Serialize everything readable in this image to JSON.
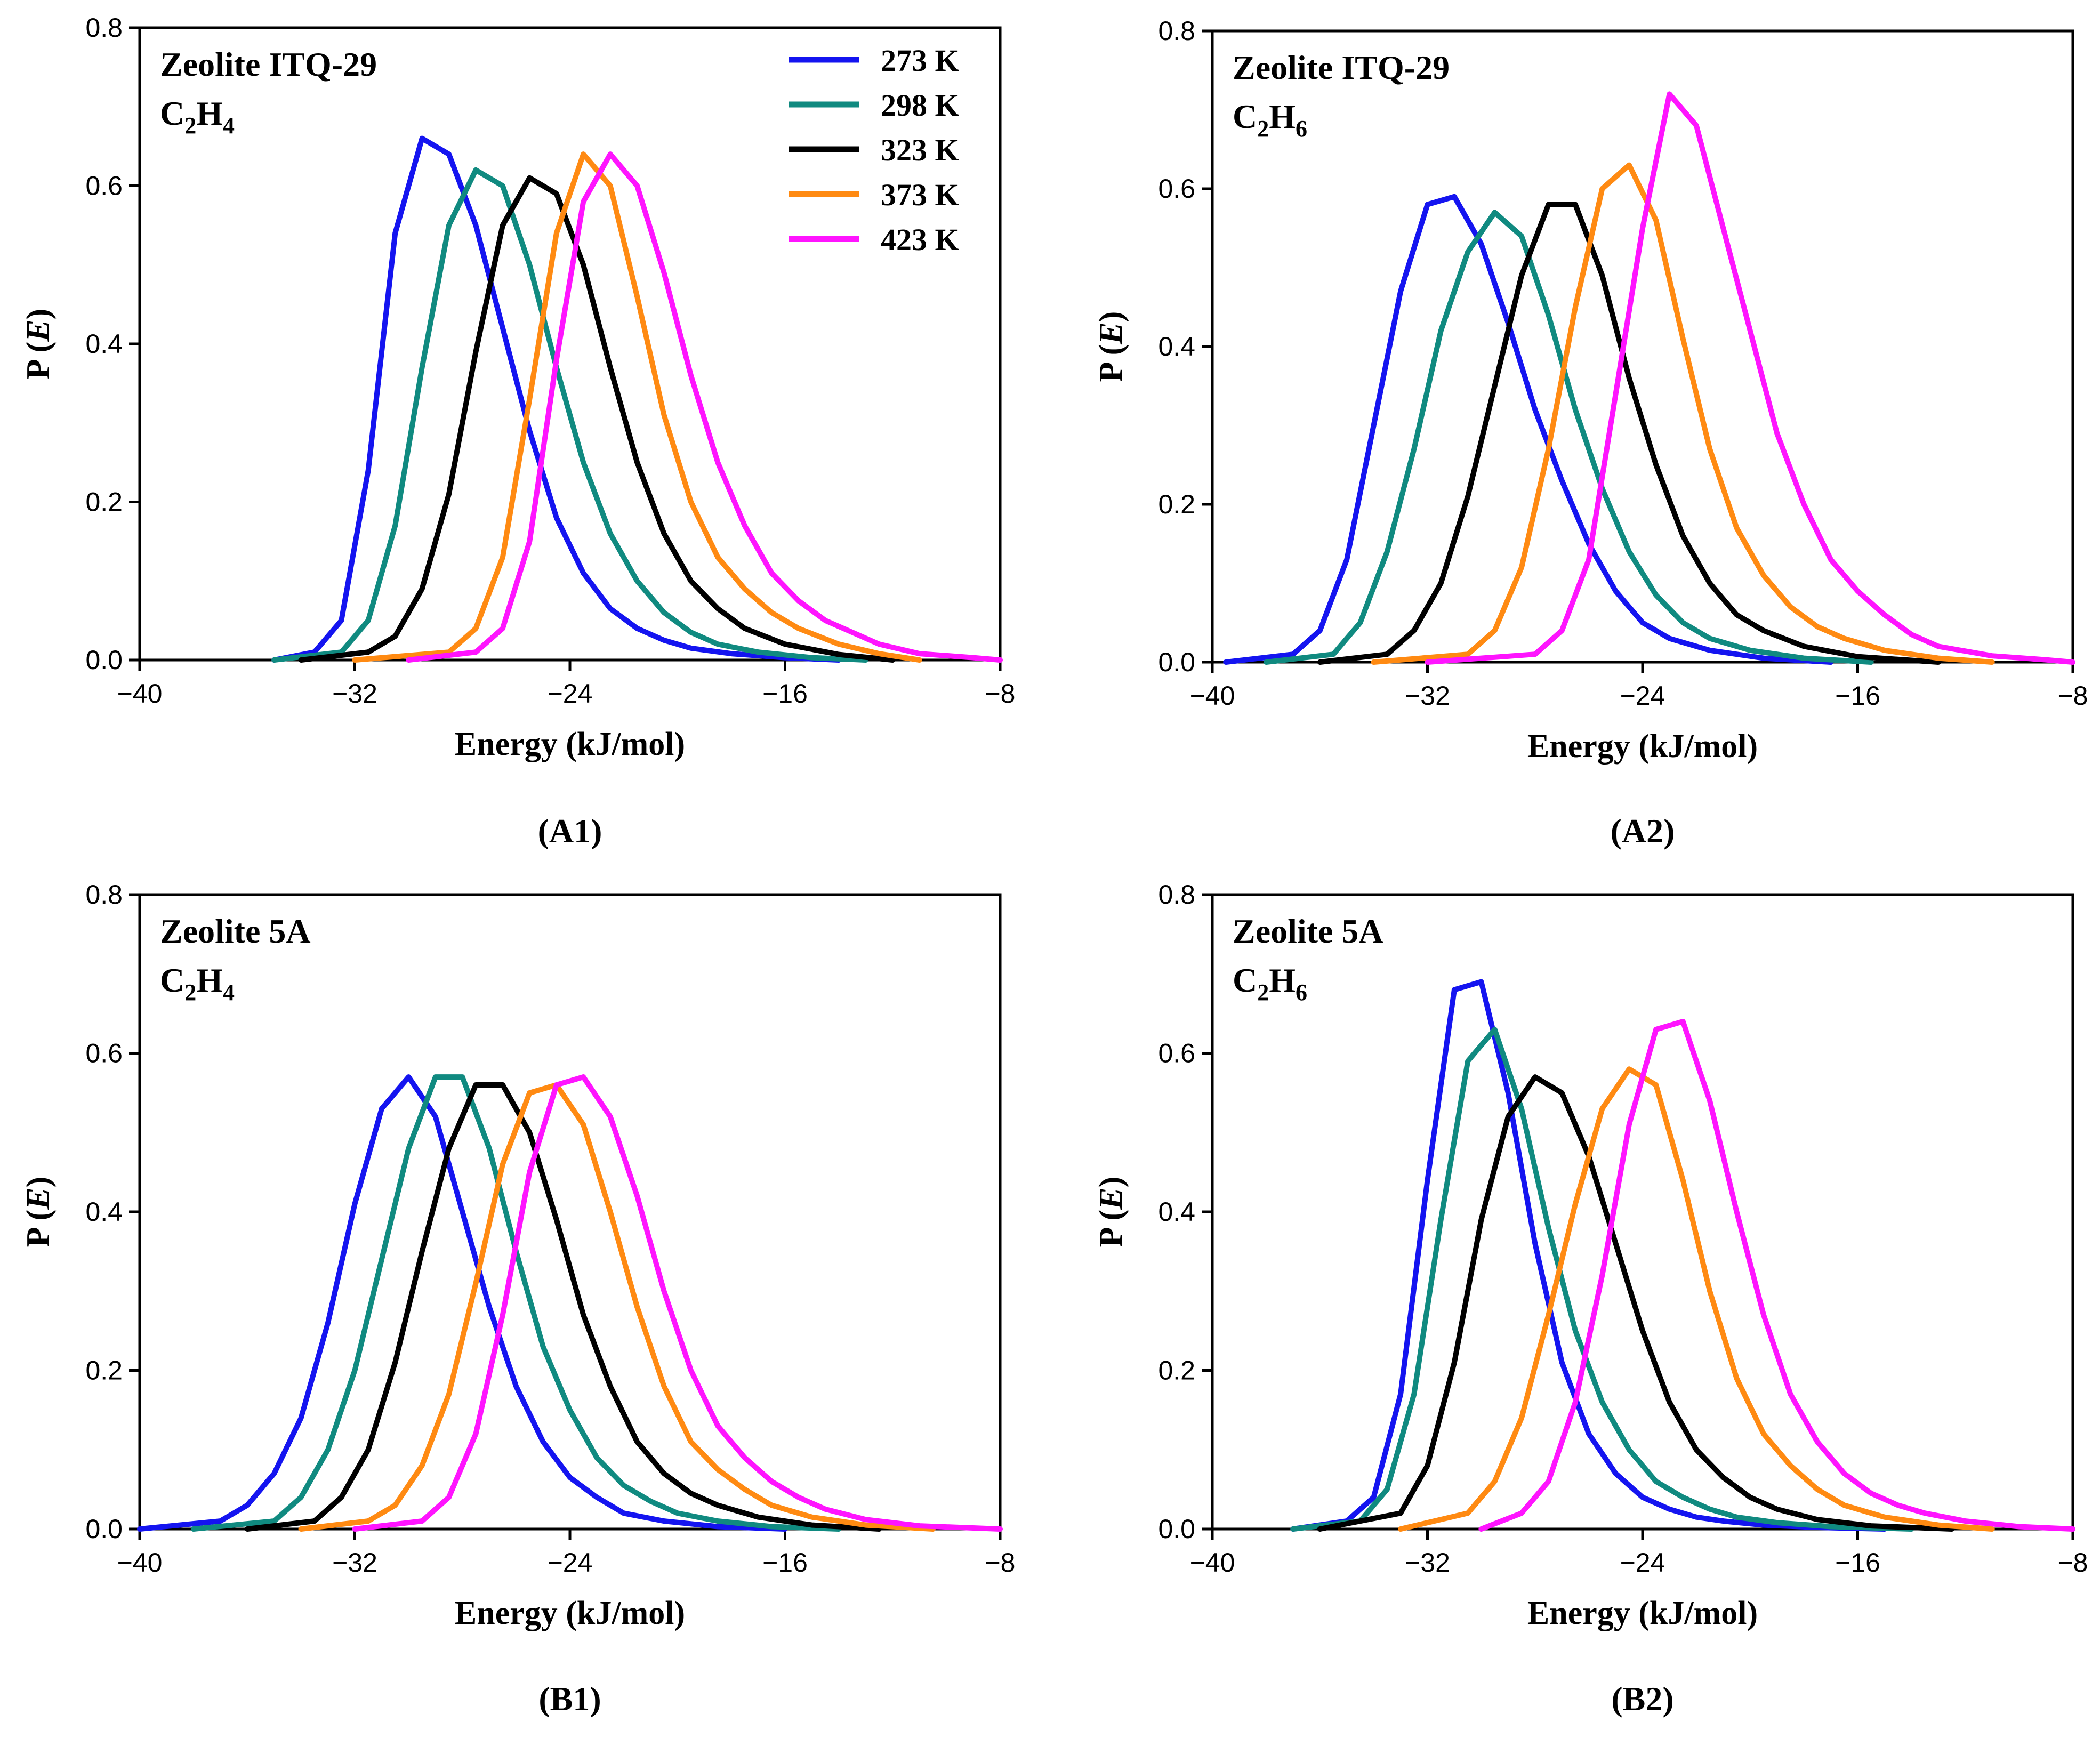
{
  "figure": {
    "legend": [
      {
        "label": "273 K",
        "color": "#1414F0"
      },
      {
        "label": "298 K",
        "color": "#108A80"
      },
      {
        "label": "323 K",
        "color": "#000000"
      },
      {
        "label": "373 K",
        "color": "#FF8A12"
      },
      {
        "label": "423 K",
        "color": "#FF14FF"
      }
    ]
  },
  "chart_data": [
    {
      "type": "line",
      "panel_label": "(A1)",
      "annotation": {
        "line1": "Zeolite ITQ-29",
        "formula": [
          "C",
          "2",
          "H",
          "4"
        ]
      },
      "xlabel": "Energy (kJ/mol)",
      "ylabel": "P (E)",
      "xlim": [
        -40,
        -8
      ],
      "ylim": [
        0,
        0.8
      ],
      "xticks": [
        "−40",
        "−32",
        "−24",
        "−16",
        "−8"
      ],
      "yticks": [
        "0.0",
        "0.2",
        "0.4",
        "0.6",
        "0.8"
      ],
      "series": [
        {
          "name": "273 K",
          "color": "#1414F0",
          "x": [
            -35,
            -33.5,
            -32.5,
            -31.5,
            -30.5,
            -29.5,
            -28.5,
            -27.5,
            -26.5,
            -25.5,
            -24.5,
            -23.5,
            -22.5,
            -21.5,
            -20.5,
            -19.5,
            -18,
            -16,
            -14
          ],
          "y": [
            0,
            0.01,
            0.05,
            0.24,
            0.54,
            0.66,
            0.64,
            0.55,
            0.42,
            0.29,
            0.18,
            0.11,
            0.065,
            0.04,
            0.025,
            0.015,
            0.008,
            0.003,
            0
          ]
        },
        {
          "name": "298 K",
          "color": "#108A80",
          "x": [
            -35,
            -32.5,
            -31.5,
            -30.5,
            -29.5,
            -28.5,
            -27.5,
            -26.5,
            -25.5,
            -24.5,
            -23.5,
            -22.5,
            -21.5,
            -20.5,
            -19.5,
            -18.5,
            -17,
            -15,
            -13
          ],
          "y": [
            0,
            0.01,
            0.05,
            0.17,
            0.37,
            0.55,
            0.62,
            0.6,
            0.5,
            0.37,
            0.25,
            0.16,
            0.1,
            0.06,
            0.035,
            0.02,
            0.01,
            0.003,
            0
          ]
        },
        {
          "name": "323 K",
          "color": "#000000",
          "x": [
            -34,
            -31.5,
            -30.5,
            -29.5,
            -28.5,
            -27.5,
            -26.5,
            -25.5,
            -24.5,
            -23.5,
            -22.5,
            -21.5,
            -20.5,
            -19.5,
            -18.5,
            -17.5,
            -16,
            -14,
            -12
          ],
          "y": [
            0,
            0.01,
            0.03,
            0.09,
            0.21,
            0.39,
            0.55,
            0.61,
            0.59,
            0.5,
            0.37,
            0.25,
            0.16,
            0.1,
            0.065,
            0.04,
            0.02,
            0.007,
            0
          ]
        },
        {
          "name": "373 K",
          "color": "#FF8A12",
          "x": [
            -32,
            -28.5,
            -27.5,
            -26.5,
            -25.5,
            -24.5,
            -23.5,
            -22.5,
            -21.5,
            -20.5,
            -19.5,
            -18.5,
            -17.5,
            -16.5,
            -15.5,
            -14,
            -12.5,
            -11
          ],
          "y": [
            0,
            0.01,
            0.04,
            0.13,
            0.33,
            0.54,
            0.64,
            0.6,
            0.46,
            0.31,
            0.2,
            0.13,
            0.09,
            0.06,
            0.04,
            0.02,
            0.008,
            0
          ]
        },
        {
          "name": "423 K",
          "color": "#FF14FF",
          "x": [
            -30,
            -27.5,
            -26.5,
            -25.5,
            -24.5,
            -23.5,
            -22.5,
            -21.5,
            -20.5,
            -19.5,
            -18.5,
            -17.5,
            -16.5,
            -15.5,
            -14.5,
            -13.5,
            -12.5,
            -11,
            -9,
            -8
          ],
          "y": [
            0,
            0.01,
            0.04,
            0.15,
            0.38,
            0.58,
            0.64,
            0.6,
            0.49,
            0.36,
            0.25,
            0.17,
            0.11,
            0.075,
            0.05,
            0.035,
            0.02,
            0.008,
            0.003,
            0
          ]
        }
      ]
    },
    {
      "type": "line",
      "panel_label": "(A2)",
      "annotation": {
        "line1": "Zeolite ITQ-29",
        "formula": [
          "C",
          "2",
          "H",
          "6"
        ]
      },
      "xlabel": "Energy (kJ/mol)",
      "ylabel": "P (E)",
      "xlim": [
        -40,
        -8
      ],
      "ylim": [
        0,
        0.8
      ],
      "xticks": [
        "−40",
        "−32",
        "−24",
        "−16",
        "−8"
      ],
      "yticks": [
        "0.0",
        "0.2",
        "0.4",
        "0.6",
        "0.8"
      ],
      "series": [
        {
          "name": "273 K",
          "color": "#1414F0",
          "x": [
            -39.5,
            -37,
            -36,
            -35,
            -34,
            -33,
            -32,
            -31,
            -30,
            -29,
            -28,
            -27,
            -26,
            -25,
            -24,
            -23,
            -21.5,
            -19.5,
            -17
          ],
          "y": [
            0,
            0.01,
            0.04,
            0.13,
            0.3,
            0.47,
            0.58,
            0.59,
            0.53,
            0.43,
            0.32,
            0.23,
            0.15,
            0.09,
            0.05,
            0.03,
            0.015,
            0.005,
            0
          ]
        },
        {
          "name": "298 K",
          "color": "#108A80",
          "x": [
            -38,
            -35.5,
            -34.5,
            -33.5,
            -32.5,
            -31.5,
            -30.5,
            -29.5,
            -28.5,
            -27.5,
            -26.5,
            -25.5,
            -24.5,
            -23.5,
            -22.5,
            -21.5,
            -20,
            -18,
            -15.5
          ],
          "y": [
            0,
            0.01,
            0.05,
            0.14,
            0.27,
            0.42,
            0.52,
            0.57,
            0.54,
            0.44,
            0.32,
            0.22,
            0.14,
            0.085,
            0.05,
            0.03,
            0.015,
            0.005,
            0
          ]
        },
        {
          "name": "323 K",
          "color": "#000000",
          "x": [
            -36,
            -33.5,
            -32.5,
            -31.5,
            -30.5,
            -29.5,
            -28.5,
            -27.5,
            -26.5,
            -25.5,
            -24.5,
            -23.5,
            -22.5,
            -21.5,
            -20.5,
            -19.5,
            -18,
            -16,
            -13
          ],
          "y": [
            0,
            0.01,
            0.04,
            0.1,
            0.21,
            0.35,
            0.49,
            0.58,
            0.58,
            0.49,
            0.36,
            0.25,
            0.16,
            0.1,
            0.06,
            0.04,
            0.02,
            0.007,
            0
          ]
        },
        {
          "name": "373 K",
          "color": "#FF8A12",
          "x": [
            -34,
            -30.5,
            -29.5,
            -28.5,
            -27.5,
            -26.5,
            -25.5,
            -24.5,
            -23.5,
            -22.5,
            -21.5,
            -20.5,
            -19.5,
            -18.5,
            -17.5,
            -16.5,
            -15,
            -13,
            -11
          ],
          "y": [
            0,
            0.01,
            0.04,
            0.12,
            0.27,
            0.45,
            0.6,
            0.63,
            0.56,
            0.41,
            0.27,
            0.17,
            0.11,
            0.07,
            0.045,
            0.03,
            0.015,
            0.005,
            0
          ]
        },
        {
          "name": "423 K",
          "color": "#FF14FF",
          "x": [
            -32,
            -28,
            -27,
            -26,
            -25,
            -24,
            -23,
            -22,
            -21,
            -20,
            -19,
            -18,
            -17,
            -16,
            -15,
            -14,
            -13,
            -11,
            -9,
            -8
          ],
          "y": [
            0,
            0.01,
            0.04,
            0.13,
            0.34,
            0.55,
            0.72,
            0.68,
            0.55,
            0.42,
            0.29,
            0.2,
            0.13,
            0.09,
            0.06,
            0.035,
            0.02,
            0.008,
            0.003,
            0
          ]
        }
      ]
    },
    {
      "type": "line",
      "panel_label": "(B1)",
      "annotation": {
        "line1": "Zeolite 5A",
        "formula": [
          "C",
          "2",
          "H",
          "4"
        ]
      },
      "xlabel": "Energy (kJ/mol)",
      "ylabel": "P (E)",
      "xlim": [
        -40,
        -8
      ],
      "ylim": [
        0,
        0.8
      ],
      "xticks": [
        "−40",
        "−32",
        "−24",
        "−16",
        "−8"
      ],
      "yticks": [
        "0.0",
        "0.2",
        "0.4",
        "0.6",
        "0.8"
      ],
      "series": [
        {
          "name": "273 K",
          "color": "#1414F0",
          "x": [
            -40,
            -37,
            -36,
            -35,
            -34,
            -33,
            -32,
            -31,
            -30,
            -29,
            -28,
            -27,
            -26,
            -25,
            -24,
            -23,
            -22,
            -20.5,
            -18.5,
            -16
          ],
          "y": [
            0,
            0.01,
            0.03,
            0.07,
            0.14,
            0.26,
            0.41,
            0.53,
            0.57,
            0.52,
            0.4,
            0.28,
            0.18,
            0.11,
            0.065,
            0.04,
            0.02,
            0.01,
            0.003,
            0
          ]
        },
        {
          "name": "298 K",
          "color": "#108A80",
          "x": [
            -38,
            -35,
            -34,
            -33,
            -32,
            -31,
            -30,
            -29,
            -28,
            -27,
            -26,
            -25,
            -24,
            -23,
            -22,
            -21,
            -20,
            -18.5,
            -16.5,
            -14
          ],
          "y": [
            0,
            0.01,
            0.04,
            0.1,
            0.2,
            0.34,
            0.48,
            0.57,
            0.57,
            0.48,
            0.35,
            0.23,
            0.15,
            0.09,
            0.055,
            0.035,
            0.02,
            0.01,
            0.003,
            0
          ]
        },
        {
          "name": "323 K",
          "color": "#000000",
          "x": [
            -36,
            -33.5,
            -32.5,
            -31.5,
            -30.5,
            -29.5,
            -28.5,
            -27.5,
            -26.5,
            -25.5,
            -24.5,
            -23.5,
            -22.5,
            -21.5,
            -20.5,
            -19.5,
            -18.5,
            -17,
            -15,
            -12.5
          ],
          "y": [
            0,
            0.01,
            0.04,
            0.1,
            0.21,
            0.35,
            0.48,
            0.56,
            0.56,
            0.5,
            0.39,
            0.27,
            0.18,
            0.11,
            0.07,
            0.045,
            0.03,
            0.015,
            0.005,
            0
          ]
        },
        {
          "name": "373 K",
          "color": "#FF8A12",
          "x": [
            -34,
            -31.5,
            -30.5,
            -29.5,
            -28.5,
            -27.5,
            -26.5,
            -25.5,
            -24.5,
            -23.5,
            -22.5,
            -21.5,
            -20.5,
            -19.5,
            -18.5,
            -17.5,
            -16.5,
            -15,
            -13,
            -10.5
          ],
          "y": [
            0,
            0.01,
            0.03,
            0.08,
            0.17,
            0.31,
            0.46,
            0.55,
            0.56,
            0.51,
            0.4,
            0.28,
            0.18,
            0.11,
            0.075,
            0.05,
            0.03,
            0.015,
            0.005,
            0
          ]
        },
        {
          "name": "423 K",
          "color": "#FF14FF",
          "x": [
            -32,
            -29.5,
            -28.5,
            -27.5,
            -26.5,
            -25.5,
            -24.5,
            -23.5,
            -22.5,
            -21.5,
            -20.5,
            -19.5,
            -18.5,
            -17.5,
            -16.5,
            -15.5,
            -14.5,
            -13,
            -11,
            -8
          ],
          "y": [
            0,
            0.01,
            0.04,
            0.12,
            0.27,
            0.45,
            0.56,
            0.57,
            0.52,
            0.42,
            0.3,
            0.2,
            0.13,
            0.09,
            0.06,
            0.04,
            0.025,
            0.012,
            0.004,
            0
          ]
        }
      ]
    },
    {
      "type": "line",
      "panel_label": "(B2)",
      "annotation": {
        "line1": "Zeolite 5A",
        "formula": [
          "C",
          "2",
          "H",
          "6"
        ]
      },
      "xlabel": "Energy (kJ/mol)",
      "ylabel": "P (E)",
      "xlim": [
        -40,
        -8
      ],
      "ylim": [
        0,
        0.8
      ],
      "xticks": [
        "−40",
        "−32",
        "−24",
        "−16",
        "−8"
      ],
      "yticks": [
        "0.0",
        "0.2",
        "0.4",
        "0.6",
        "0.8"
      ],
      "series": [
        {
          "name": "273 K",
          "color": "#1414F0",
          "x": [
            -37,
            -35,
            -34,
            -33,
            -32,
            -31,
            -30,
            -29,
            -28,
            -27,
            -26,
            -25,
            -24,
            -23,
            -22,
            -21,
            -19.5,
            -17.5,
            -15
          ],
          "y": [
            0,
            0.01,
            0.04,
            0.17,
            0.44,
            0.68,
            0.69,
            0.55,
            0.36,
            0.21,
            0.12,
            0.07,
            0.04,
            0.025,
            0.015,
            0.01,
            0.005,
            0.002,
            0
          ]
        },
        {
          "name": "298 K",
          "color": "#108A80",
          "x": [
            -37,
            -34.5,
            -33.5,
            -32.5,
            -31.5,
            -30.5,
            -29.5,
            -28.5,
            -27.5,
            -26.5,
            -25.5,
            -24.5,
            -23.5,
            -22.5,
            -21.5,
            -20.5,
            -19,
            -17,
            -14
          ],
          "y": [
            0,
            0.01,
            0.05,
            0.17,
            0.39,
            0.59,
            0.63,
            0.53,
            0.38,
            0.25,
            0.16,
            0.1,
            0.06,
            0.04,
            0.025,
            0.015,
            0.008,
            0.003,
            0
          ]
        },
        {
          "name": "323 K",
          "color": "#000000",
          "x": [
            -36,
            -33,
            -32,
            -31,
            -30,
            -29,
            -28,
            -27,
            -26,
            -25,
            -24,
            -23,
            -22,
            -21,
            -20,
            -19,
            -17.5,
            -15.5,
            -12.5
          ],
          "y": [
            0,
            0.02,
            0.08,
            0.21,
            0.39,
            0.52,
            0.57,
            0.55,
            0.47,
            0.36,
            0.25,
            0.16,
            0.1,
            0.065,
            0.04,
            0.025,
            0.012,
            0.004,
            0
          ]
        },
        {
          "name": "373 K",
          "color": "#FF8A12",
          "x": [
            -33,
            -30.5,
            -29.5,
            -28.5,
            -27.5,
            -26.5,
            -25.5,
            -24.5,
            -23.5,
            -22.5,
            -21.5,
            -20.5,
            -19.5,
            -18.5,
            -17.5,
            -16.5,
            -15,
            -13,
            -11
          ],
          "y": [
            0,
            0.02,
            0.06,
            0.14,
            0.27,
            0.41,
            0.53,
            0.58,
            0.56,
            0.44,
            0.3,
            0.19,
            0.12,
            0.08,
            0.05,
            0.03,
            0.015,
            0.005,
            0
          ]
        },
        {
          "name": "423 K",
          "color": "#FF14FF",
          "x": [
            -30,
            -28.5,
            -27.5,
            -26.5,
            -25.5,
            -24.5,
            -23.5,
            -22.5,
            -21.5,
            -20.5,
            -19.5,
            -18.5,
            -17.5,
            -16.5,
            -15.5,
            -14.5,
            -13.5,
            -12,
            -10,
            -8
          ],
          "y": [
            0,
            0.02,
            0.06,
            0.16,
            0.32,
            0.51,
            0.63,
            0.64,
            0.54,
            0.4,
            0.27,
            0.17,
            0.11,
            0.07,
            0.045,
            0.03,
            0.02,
            0.01,
            0.003,
            0
          ]
        }
      ]
    }
  ]
}
